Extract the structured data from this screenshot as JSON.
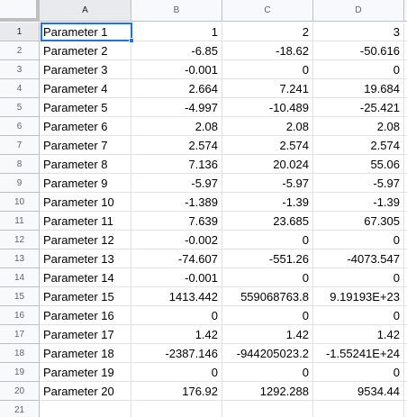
{
  "column_headers": [
    "A",
    "B",
    "C",
    "D"
  ],
  "rows": [
    {
      "num": "1",
      "a": "Parameter 1",
      "b": "1",
      "c": "2",
      "d": "3"
    },
    {
      "num": "2",
      "a": "Parameter 2",
      "b": "-6.85",
      "c": "-18.62",
      "d": "-50.616"
    },
    {
      "num": "3",
      "a": "Parameter 3",
      "b": "-0.001",
      "c": "0",
      "d": "0"
    },
    {
      "num": "4",
      "a": "Parameter 4",
      "b": "2.664",
      "c": "7.241",
      "d": "19.684"
    },
    {
      "num": "5",
      "a": "Parameter 5",
      "b": "-4.997",
      "c": "-10.489",
      "d": "-25.421"
    },
    {
      "num": "6",
      "a": "Parameter 6",
      "b": "2.08",
      "c": "2.08",
      "d": "2.08"
    },
    {
      "num": "7",
      "a": "Parameter 7",
      "b": "2.574",
      "c": "2.574",
      "d": "2.574"
    },
    {
      "num": "8",
      "a": "Parameter 8",
      "b": "7.136",
      "c": "20.024",
      "d": "55.06"
    },
    {
      "num": "9",
      "a": "Parameter 9",
      "b": "-5.97",
      "c": "-5.97",
      "d": "-5.97"
    },
    {
      "num": "10",
      "a": "Parameter 10",
      "b": "-1.389",
      "c": "-1.39",
      "d": "-1.39"
    },
    {
      "num": "11",
      "a": "Parameter 11",
      "b": "7.639",
      "c": "23.685",
      "d": "67.305"
    },
    {
      "num": "12",
      "a": "Parameter 12",
      "b": "-0.002",
      "c": "0",
      "d": "0"
    },
    {
      "num": "13",
      "a": "Parameter 13",
      "b": "-74.607",
      "c": "-551.26",
      "d": "-4073.547"
    },
    {
      "num": "14",
      "a": "Parameter 14",
      "b": "-0.001",
      "c": "0",
      "d": "0"
    },
    {
      "num": "15",
      "a": "Parameter 15",
      "b": "1413.442",
      "c": "559068763.8",
      "d": "9.19193E+23"
    },
    {
      "num": "16",
      "a": "Parameter 16",
      "b": "0",
      "c": "0",
      "d": "0"
    },
    {
      "num": "17",
      "a": "Parameter 17",
      "b": "1.42",
      "c": "1.42",
      "d": "1.42"
    },
    {
      "num": "18",
      "a": "Parameter 18",
      "b": "-2387.146",
      "c": "-944205023.2",
      "d": "-1.55241E+24"
    },
    {
      "num": "19",
      "a": "Parameter 19",
      "b": "0",
      "c": "0",
      "d": "0"
    },
    {
      "num": "20",
      "a": "Parameter 20",
      "b": "176.92",
      "c": "1292.288",
      "d": "9534.44"
    },
    {
      "num": "21",
      "a": "",
      "b": "",
      "c": "",
      "d": ""
    }
  ],
  "selected_cell": "A1",
  "colors": {
    "selection": "#1a73e8",
    "header_bg": "#f8f9fa",
    "header_selected_bg": "#e8eaed",
    "grid_line": "#e2e2e2",
    "header_border": "#c0c0c0"
  }
}
